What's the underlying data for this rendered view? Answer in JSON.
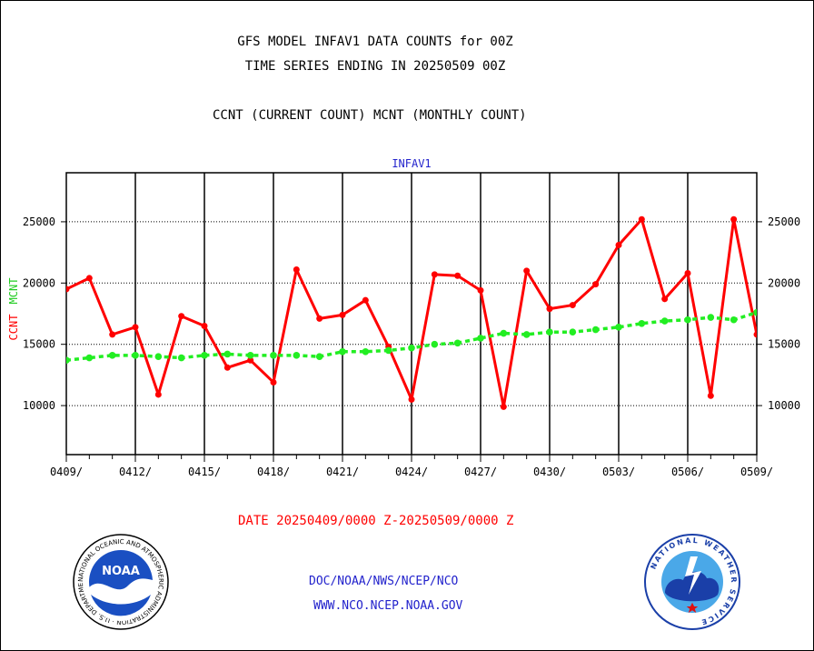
{
  "header": {
    "line1": "GFS MODEL INFAV1 DATA COUNTS for 00Z",
    "line2": "TIME SERIES ENDING IN 20250509 00Z",
    "legend": "CCNT (CURRENT COUNT) MCNT (MONTHLY COUNT)"
  },
  "footer": {
    "date_range": "DATE 20250409/0000 Z-20250509/0000 Z",
    "org": "DOC/NOAA/NWS/NCEP/NCO",
    "website": "WWW.NCO.NCEP.NOAA.GOV"
  },
  "logos": {
    "noaa_text": "NOAA",
    "noaa_ring": "NATIONAL OCEANIC AND ATMOSPHERIC ADMINISTRATION · U.S. DEPARTMENT OF COMMERCE",
    "nws_ring": "NATIONAL WEATHER SERVICE"
  },
  "chart_data": {
    "type": "line",
    "title": "INFAV1",
    "ylabel_ccnt": "CCNT",
    "ylabel_mcnt": "MCNT",
    "ylim": [
      6000,
      29000
    ],
    "yticks": [
      "10000",
      "15000",
      "20000",
      "25000"
    ],
    "ytick_values": [
      10000,
      15000,
      20000,
      25000
    ],
    "xlim": [
      0,
      30
    ],
    "xticks": [
      "0409/",
      "0412/",
      "0415/",
      "0418/",
      "0421/",
      "0424/",
      "0427/",
      "0430/",
      "0503/",
      "0506/",
      "0509/"
    ],
    "xtick_days": [
      0,
      3,
      6,
      9,
      12,
      15,
      18,
      21,
      24,
      27,
      30
    ],
    "grid": true,
    "series": [
      {
        "name": "CCNT",
        "color": "#ff0000",
        "x": [
          0,
          1,
          2,
          3,
          4,
          5,
          6,
          7,
          8,
          9,
          10,
          11,
          12,
          13,
          14,
          15,
          16,
          17,
          18,
          19,
          20,
          21,
          22,
          23,
          24,
          25,
          26,
          27,
          28,
          29,
          30
        ],
        "values": [
          19500,
          20400,
          15800,
          16400,
          10900,
          17300,
          16500,
          13100,
          13700,
          11900,
          21100,
          17100,
          17400,
          18600,
          14800,
          10500,
          20700,
          20600,
          19400,
          9900,
          21000,
          17900,
          18200,
          19900,
          23100,
          25200,
          18700,
          20800,
          10800,
          25200,
          15800
        ]
      },
      {
        "name": "MCNT",
        "color": "#22ee22",
        "x": [
          0,
          1,
          2,
          3,
          4,
          5,
          6,
          7,
          8,
          9,
          10,
          11,
          12,
          13,
          14,
          15,
          16,
          17,
          18,
          19,
          20,
          21,
          22,
          23,
          24,
          25,
          26,
          27,
          28,
          29,
          30
        ],
        "values": [
          13700,
          13900,
          14100,
          14100,
          14000,
          13900,
          14100,
          14200,
          14100,
          14100,
          14100,
          14000,
          14400,
          14400,
          14500,
          14700,
          15000,
          15100,
          15500,
          15900,
          15800,
          16000,
          16000,
          16200,
          16400,
          16700,
          16900,
          17000,
          17200,
          17000,
          17600
        ]
      }
    ]
  }
}
